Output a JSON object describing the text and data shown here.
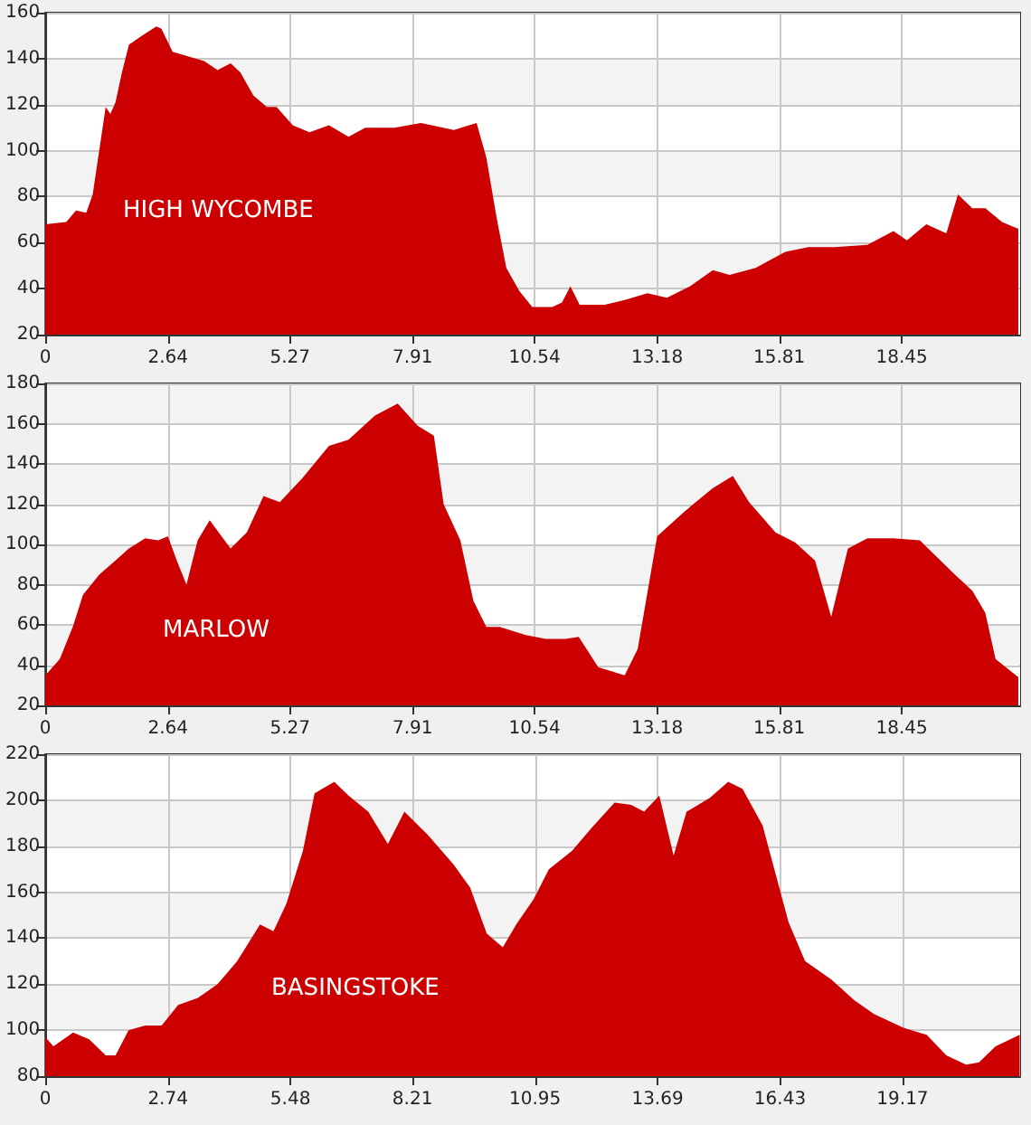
{
  "chart_data": [
    {
      "type": "area",
      "color": "#cc0000",
      "annotations": [
        "HIGH WYCOMBE"
      ],
      "xlim": [
        0,
        21.0
      ],
      "xticks": [
        0,
        2.64,
        5.27,
        7.91,
        10.54,
        13.18,
        15.81,
        18.45
      ],
      "ylim": [
        20,
        160
      ],
      "yticks": [
        20,
        40,
        60,
        80,
        100,
        120,
        140,
        160
      ],
      "grid": true,
      "x": [
        0,
        0.45,
        0.66,
        0.88,
        1.02,
        1.16,
        1.3,
        1.4,
        1.51,
        1.65,
        1.8,
        2.08,
        2.39,
        2.5,
        2.74,
        3.07,
        3.42,
        3.71,
        3.99,
        4.2,
        4.48,
        4.77,
        4.98,
        5.33,
        5.69,
        6.11,
        6.53,
        6.89,
        7.52,
        8.09,
        8.8,
        9.29,
        9.5,
        9.72,
        9.93,
        10.21,
        10.49,
        10.92,
        11.13,
        11.31,
        11.51,
        12.05,
        12.48,
        12.97,
        13.39,
        13.89,
        14.38,
        14.74,
        15.3,
        15.94,
        16.44,
        17.0,
        17.71,
        18.27,
        18.56,
        18.98,
        19.41,
        19.66,
        19.97,
        20.25,
        20.61,
        20.96
      ],
      "values": [
        68,
        69,
        74,
        73,
        81,
        100,
        119,
        116,
        121,
        134,
        146,
        150,
        154,
        153,
        143,
        141,
        139,
        135,
        138,
        134,
        124,
        119,
        119,
        111,
        108,
        111,
        106,
        110,
        110,
        112,
        109,
        112,
        97,
        71,
        49,
        39,
        32,
        32,
        34,
        41,
        33,
        33,
        35,
        38,
        36,
        41,
        48,
        46,
        49,
        56,
        58,
        58,
        59,
        65,
        61,
        68,
        64,
        81,
        75,
        75,
        69,
        66
      ]
    },
    {
      "type": "area",
      "color": "#cc0000",
      "annotations": [
        "MARLOW"
      ],
      "xlim": [
        0,
        21.0
      ],
      "xticks": [
        0,
        2.64,
        5.27,
        7.91,
        10.54,
        13.18,
        15.81,
        18.45
      ],
      "ylim": [
        20,
        180
      ],
      "yticks": [
        20,
        40,
        60,
        80,
        100,
        120,
        140,
        160,
        180
      ],
      "grid": true,
      "x": [
        0,
        0.31,
        0.59,
        0.81,
        1.16,
        1.51,
        1.8,
        2.15,
        2.43,
        2.64,
        2.83,
        3.04,
        3.28,
        3.54,
        3.99,
        4.34,
        4.7,
        5.05,
        5.54,
        6.11,
        6.53,
        7.1,
        7.59,
        8.02,
        8.37,
        8.58,
        8.94,
        9.22,
        9.5,
        9.79,
        10.35,
        10.78,
        11.2,
        11.49,
        11.91,
        12.48,
        12.76,
        13.18,
        13.75,
        14.38,
        14.81,
        15.16,
        15.73,
        16.15,
        16.58,
        16.93,
        17.29,
        17.71,
        18.27,
        18.84,
        19.55,
        19.97,
        20.25,
        20.47,
        20.96
      ],
      "values": [
        35,
        43,
        59,
        75,
        85,
        92,
        98,
        103,
        102,
        104,
        92,
        80,
        102,
        112,
        98,
        106,
        124,
        121,
        133,
        149,
        152,
        164,
        170,
        159,
        154,
        120,
        102,
        72,
        59,
        59,
        55,
        53,
        53,
        54,
        39,
        35,
        48,
        104,
        116,
        128,
        134,
        121,
        106,
        101,
        92,
        64,
        98,
        103,
        103,
        102,
        86,
        77,
        66,
        43,
        34
      ]
    },
    {
      "type": "area",
      "color": "#cc0000",
      "annotations": [
        "BASINGSTOKE"
      ],
      "xlim": [
        0,
        21.8
      ],
      "xticks": [
        0,
        2.74,
        5.48,
        8.21,
        10.95,
        13.69,
        16.43,
        19.17
      ],
      "ylim": [
        80,
        220
      ],
      "yticks": [
        80,
        100,
        120,
        140,
        160,
        180,
        200,
        220
      ],
      "grid": true,
      "x": [
        0,
        0.18,
        0.62,
        0.98,
        1.35,
        1.57,
        1.86,
        2.23,
        2.6,
        2.97,
        3.41,
        3.85,
        4.29,
        4.8,
        5.1,
        5.39,
        5.76,
        6.02,
        6.46,
        6.78,
        7.22,
        7.66,
        8.03,
        8.55,
        9.13,
        9.5,
        9.87,
        10.23,
        10.53,
        10.92,
        11.26,
        11.78,
        12.22,
        12.73,
        13.1,
        13.39,
        13.73,
        14.05,
        14.34,
        14.86,
        15.27,
        15.59,
        16.04,
        16.62,
        16.99,
        17.58,
        18.09,
        18.53,
        19.19,
        19.71,
        20.15,
        20.59,
        20.88,
        21.25,
        21.79
      ],
      "values": [
        97,
        93,
        99,
        96,
        89,
        89,
        100,
        102,
        102,
        111,
        114,
        120,
        130,
        146,
        143,
        155,
        178,
        203,
        208,
        202,
        195,
        181,
        195,
        185,
        172,
        162,
        142,
        136,
        146,
        157,
        170,
        178,
        188,
        199,
        198,
        195,
        202,
        176,
        195,
        201,
        208,
        205,
        189,
        147,
        130,
        122,
        113,
        107,
        101,
        98,
        89,
        85,
        86,
        93,
        98
      ]
    }
  ]
}
